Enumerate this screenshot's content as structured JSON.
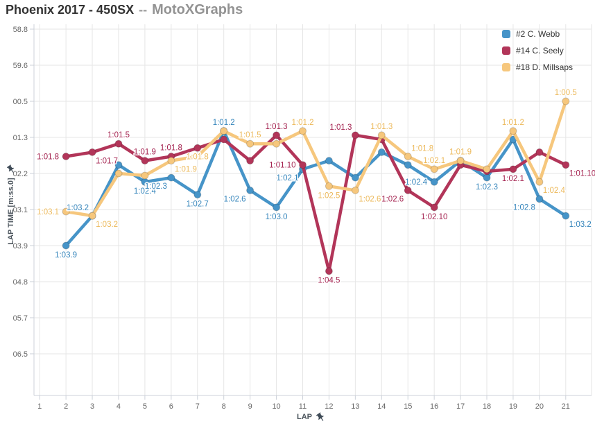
{
  "title": {
    "main": "Phoenix 2017 - 450SX",
    "separator": "--",
    "brand": "MotoXGraphs"
  },
  "chart_data": {
    "type": "line",
    "title": "Phoenix 2017 - 450SX -- MotoXGraphs",
    "grid": true,
    "legend_position": "top-right",
    "xaxis": {
      "title": "LAP",
      "ticks": [
        "1",
        "2",
        "3",
        "4",
        "5",
        "6",
        "7",
        "8",
        "9",
        "10",
        "11",
        "12",
        "13",
        "14",
        "15",
        "16",
        "17",
        "18",
        "19",
        "20",
        "21"
      ],
      "range": [
        1,
        21
      ]
    },
    "yaxis": {
      "title": "LAP TIME [m:ss.0]",
      "unit": "m:ss.0",
      "direction": "time increases downward (faster laps at top)",
      "ticks": [
        {
          "label": "58.8",
          "sec": 58.8
        },
        {
          "label": "59.6",
          "sec": 59.65
        },
        {
          "label": "00.5",
          "sec": 60.5
        },
        {
          "label": "01.3",
          "sec": 61.35
        },
        {
          "label": "02.2",
          "sec": 62.2
        },
        {
          "label": "03.1",
          "sec": 63.05
        },
        {
          "label": "03.9",
          "sec": 63.9
        },
        {
          "label": "04.8",
          "sec": 64.75
        },
        {
          "label": "05.7",
          "sec": 65.6
        },
        {
          "label": "06.5",
          "sec": 66.45
        }
      ]
    },
    "series": [
      {
        "name": "#2 C. Webb",
        "color": "#4694c8",
        "label_color": "#3585bb",
        "points": [
          [
            2,
            63.9,
            "1:03.9",
            "below"
          ],
          [
            3,
            63.2,
            "1:03.2",
            "above-left"
          ],
          [
            4,
            62.0,
            null,
            null
          ],
          [
            5,
            62.4,
            "1:02.4",
            "below"
          ],
          [
            6,
            62.3,
            "1:02.3",
            "below-left"
          ],
          [
            7,
            62.7,
            "1:02.7",
            "below"
          ],
          [
            8,
            61.2,
            "1:01.2",
            "above"
          ],
          [
            9,
            62.6,
            "1:02.6",
            "below-left"
          ],
          [
            10,
            63.0,
            "1:03.0",
            "below"
          ],
          [
            11,
            62.1,
            "1:02.1",
            "below-left"
          ],
          [
            12,
            61.9,
            null,
            null
          ],
          [
            13,
            62.3,
            null,
            null
          ],
          [
            14,
            61.7,
            null,
            null
          ],
          [
            15,
            62.0,
            null,
            null
          ],
          [
            16,
            62.4,
            "1:02.4",
            "left"
          ],
          [
            17,
            61.9,
            null,
            null
          ],
          [
            18,
            62.3,
            "1:02.3",
            "below"
          ],
          [
            19,
            61.4,
            null,
            null
          ],
          [
            20,
            62.8,
            "1:02.8",
            "below-left"
          ],
          [
            21,
            63.2,
            "1:03.2",
            "below-right"
          ]
        ]
      },
      {
        "name": "#14 C. Seely",
        "color": "#b23559",
        "label_color": "#a42350",
        "points": [
          [
            2,
            61.8,
            "1:01.8",
            "left"
          ],
          [
            3,
            61.7,
            "1:01.7",
            "below-right"
          ],
          [
            4,
            61.5,
            "1:01.5",
            "above"
          ],
          [
            5,
            61.9,
            "1:01.9",
            "above"
          ],
          [
            6,
            61.8,
            "1:01.8",
            "above"
          ],
          [
            7,
            61.6,
            null,
            null
          ],
          [
            8,
            61.4,
            null,
            null
          ],
          [
            9,
            61.9,
            null,
            null
          ],
          [
            10,
            61.3,
            "1:01.3",
            "above"
          ],
          [
            11,
            62.0,
            "1:01.10",
            "left"
          ],
          [
            12,
            64.5,
            "1:04.5",
            "below"
          ],
          [
            13,
            61.3,
            "1:01.3",
            "above-left"
          ],
          [
            14,
            61.4,
            null,
            null
          ],
          [
            15,
            62.6,
            "1:02.6",
            "below-left"
          ],
          [
            16,
            63.0,
            "1:02.10",
            "below"
          ],
          [
            17,
            62.0,
            null,
            null
          ],
          [
            18,
            62.15,
            null,
            null
          ],
          [
            19,
            62.1,
            "1:02.1",
            "below"
          ],
          [
            20,
            61.7,
            null,
            null
          ],
          [
            21,
            62.0,
            "1:01.10",
            "below-right"
          ]
        ]
      },
      {
        "name": "#18 D. Millsaps",
        "color": "#f6c77d",
        "label_color": "#ecb95b",
        "points": [
          [
            2,
            63.1,
            "1:03.1",
            "left"
          ],
          [
            3,
            63.2,
            "1:03.2",
            "below-right"
          ],
          [
            4,
            62.2,
            null,
            null
          ],
          [
            5,
            62.25,
            null,
            null
          ],
          [
            6,
            61.9,
            "1:01.9",
            "below-right"
          ],
          [
            7,
            61.8,
            "1:01.8",
            "center"
          ],
          [
            8,
            61.2,
            null,
            null
          ],
          [
            9,
            61.5,
            "1:01.5",
            "above"
          ],
          [
            10,
            61.5,
            null,
            null
          ],
          [
            11,
            61.2,
            "1:01.2",
            "above"
          ],
          [
            12,
            62.5,
            "1:02.5",
            "below"
          ],
          [
            13,
            62.6,
            "1:02.6",
            "below-right"
          ],
          [
            14,
            61.3,
            "1:01.3",
            "above"
          ],
          [
            15,
            61.8,
            "1:01.8",
            "above-right"
          ],
          [
            16,
            62.1,
            "1:02.1",
            "above"
          ],
          [
            17,
            61.9,
            "1:01.9",
            "above"
          ],
          [
            18,
            62.1,
            null,
            null
          ],
          [
            19,
            61.2,
            "1:01.2",
            "above"
          ],
          [
            20,
            62.4,
            "1:02.4",
            "below-right"
          ],
          [
            21,
            60.5,
            "1:00.5",
            "above"
          ]
        ]
      }
    ]
  },
  "colors": {
    "grid": "#e6e6e6",
    "axis": "#ccd1d9",
    "tick_text": "#666666",
    "pin_icon": "#3f4b57"
  }
}
